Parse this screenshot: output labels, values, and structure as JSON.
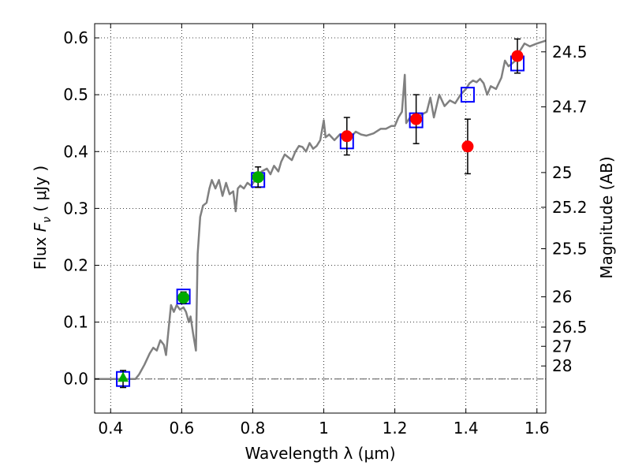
{
  "chart_data": {
    "type": "scatter",
    "xlabel": "Wavelength  λ (μm)",
    "ylabel": "Flux  F_ν  ( μJy )",
    "ylabel_parts": {
      "a": "Flux  ",
      "b": "F",
      "c": "ν",
      "d": "  ( μJy )"
    },
    "y2label": "Magnitude (AB)",
    "xlim": [
      0.355,
      1.625
    ],
    "ylim": [
      -0.06,
      0.625
    ],
    "grid": true,
    "x_ticks": [
      {
        "v": 0.4,
        "label": "0.4"
      },
      {
        "v": 0.6,
        "label": "0.6"
      },
      {
        "v": 0.8,
        "label": "0.8"
      },
      {
        "v": 1.0,
        "label": "1"
      },
      {
        "v": 1.2,
        "label": "1.2"
      },
      {
        "v": 1.4,
        "label": "1.4"
      },
      {
        "v": 1.6,
        "label": "1.6"
      }
    ],
    "y_ticks": [
      {
        "v": 0.0,
        "label": "0.0"
      },
      {
        "v": 0.1,
        "label": "0.1"
      },
      {
        "v": 0.2,
        "label": "0.2"
      },
      {
        "v": 0.3,
        "label": "0.3"
      },
      {
        "v": 0.4,
        "label": "0.4"
      },
      {
        "v": 0.5,
        "label": "0.5"
      },
      {
        "v": 0.6,
        "label": "0.6"
      }
    ],
    "mag_ticks": [
      {
        "label": "24.5",
        "flux": 0.5754
      },
      {
        "label": "24.7",
        "flux": 0.4786
      },
      {
        "label": "25",
        "flux": 0.3631
      },
      {
        "label": "25.2",
        "flux": 0.302
      },
      {
        "label": "25.5",
        "flux": 0.2291
      },
      {
        "label": "26",
        "flux": 0.1445
      },
      {
        "label": "26.5",
        "flux": 0.0912
      },
      {
        "label": "27",
        "flux": 0.0575
      },
      {
        "label": "28",
        "flux": 0.0229
      }
    ],
    "colors": {
      "model": "#808080",
      "model_box": "#0000ff",
      "detection_red": "#ff0000",
      "detection_green": "#00aa00",
      "errorbar": "#000000",
      "zero_line": "#555555"
    },
    "series": [
      {
        "kind": "line",
        "points": [
          [
            0.355,
            0.0
          ],
          [
            0.47,
            0.0
          ],
          [
            0.48,
            0.008
          ],
          [
            0.495,
            0.025
          ],
          [
            0.51,
            0.045
          ],
          [
            0.52,
            0.055
          ],
          [
            0.53,
            0.05
          ],
          [
            0.54,
            0.068
          ],
          [
            0.55,
            0.06
          ],
          [
            0.556,
            0.042
          ],
          [
            0.562,
            0.08
          ],
          [
            0.57,
            0.13
          ],
          [
            0.578,
            0.118
          ],
          [
            0.586,
            0.13
          ],
          [
            0.595,
            0.122
          ],
          [
            0.605,
            0.126
          ],
          [
            0.612,
            0.118
          ],
          [
            0.62,
            0.1
          ],
          [
            0.625,
            0.11
          ],
          [
            0.632,
            0.08
          ],
          [
            0.64,
            0.05
          ],
          [
            0.645,
            0.22
          ],
          [
            0.652,
            0.285
          ],
          [
            0.66,
            0.305
          ],
          [
            0.67,
            0.31
          ],
          [
            0.678,
            0.335
          ],
          [
            0.685,
            0.35
          ],
          [
            0.695,
            0.335
          ],
          [
            0.705,
            0.35
          ],
          [
            0.715,
            0.322
          ],
          [
            0.725,
            0.345
          ],
          [
            0.735,
            0.325
          ],
          [
            0.745,
            0.33
          ],
          [
            0.752,
            0.295
          ],
          [
            0.758,
            0.335
          ],
          [
            0.765,
            0.34
          ],
          [
            0.775,
            0.335
          ],
          [
            0.785,
            0.345
          ],
          [
            0.795,
            0.34
          ],
          [
            0.81,
            0.352
          ],
          [
            0.825,
            0.365
          ],
          [
            0.84,
            0.37
          ],
          [
            0.85,
            0.36
          ],
          [
            0.86,
            0.375
          ],
          [
            0.872,
            0.365
          ],
          [
            0.88,
            0.382
          ],
          [
            0.89,
            0.395
          ],
          [
            0.9,
            0.39
          ],
          [
            0.91,
            0.385
          ],
          [
            0.92,
            0.4
          ],
          [
            0.93,
            0.41
          ],
          [
            0.94,
            0.408
          ],
          [
            0.95,
            0.4
          ],
          [
            0.96,
            0.415
          ],
          [
            0.97,
            0.405
          ],
          [
            0.98,
            0.41
          ],
          [
            0.99,
            0.42
          ],
          [
            1.0,
            0.455
          ],
          [
            1.005,
            0.425
          ],
          [
            1.015,
            0.43
          ],
          [
            1.03,
            0.42
          ],
          [
            1.045,
            0.43
          ],
          [
            1.06,
            0.423
          ],
          [
            1.075,
            0.425
          ],
          [
            1.09,
            0.435
          ],
          [
            1.105,
            0.43
          ],
          [
            1.12,
            0.428
          ],
          [
            1.14,
            0.432
          ],
          [
            1.16,
            0.44
          ],
          [
            1.175,
            0.44
          ],
          [
            1.19,
            0.445
          ],
          [
            1.2,
            0.445
          ],
          [
            1.21,
            0.46
          ],
          [
            1.22,
            0.47
          ],
          [
            1.228,
            0.535
          ],
          [
            1.232,
            0.45
          ],
          [
            1.245,
            0.462
          ],
          [
            1.26,
            0.458
          ],
          [
            1.275,
            0.465
          ],
          [
            1.29,
            0.47
          ],
          [
            1.3,
            0.495
          ],
          [
            1.31,
            0.46
          ],
          [
            1.325,
            0.5
          ],
          [
            1.34,
            0.48
          ],
          [
            1.355,
            0.49
          ],
          [
            1.37,
            0.485
          ],
          [
            1.385,
            0.5
          ],
          [
            1.4,
            0.51
          ],
          [
            1.41,
            0.52
          ],
          [
            1.42,
            0.525
          ],
          [
            1.43,
            0.522
          ],
          [
            1.44,
            0.528
          ],
          [
            1.45,
            0.52
          ],
          [
            1.46,
            0.5
          ],
          [
            1.47,
            0.515
          ],
          [
            1.485,
            0.51
          ],
          [
            1.5,
            0.53
          ],
          [
            1.51,
            0.56
          ],
          [
            1.52,
            0.55
          ],
          [
            1.53,
            0.555
          ],
          [
            1.54,
            0.56
          ],
          [
            1.55,
            0.575
          ],
          [
            1.565,
            0.59
          ],
          [
            1.58,
            0.585
          ],
          [
            1.6,
            0.59
          ],
          [
            1.625,
            0.595
          ]
        ]
      },
      {
        "kind": "model_boxes",
        "points": [
          [
            0.435,
            0.0
          ],
          [
            0.605,
            0.145
          ],
          [
            0.815,
            0.35
          ],
          [
            1.065,
            0.418
          ],
          [
            1.26,
            0.455
          ],
          [
            1.405,
            0.5
          ],
          [
            1.545,
            0.555
          ]
        ]
      },
      {
        "kind": "points",
        "points": [
          {
            "x": 0.435,
            "y": 0.0,
            "err": 0.015,
            "marker": "triangle",
            "color": "green"
          },
          {
            "x": 0.605,
            "y": 0.143,
            "err": 0.01,
            "marker": "circle",
            "color": "green"
          },
          {
            "x": 0.815,
            "y": 0.355,
            "err": 0.018,
            "marker": "circle",
            "color": "green"
          },
          {
            "x": 1.065,
            "y": 0.427,
            "err": 0.033,
            "marker": "circle",
            "color": "red"
          },
          {
            "x": 1.26,
            "y": 0.457,
            "err": 0.043,
            "marker": "circle",
            "color": "red"
          },
          {
            "x": 1.405,
            "y": 0.409,
            "err": 0.048,
            "marker": "circle",
            "color": "red"
          },
          {
            "x": 1.545,
            "y": 0.568,
            "err": 0.03,
            "marker": "circle",
            "color": "red"
          }
        ]
      }
    ]
  }
}
